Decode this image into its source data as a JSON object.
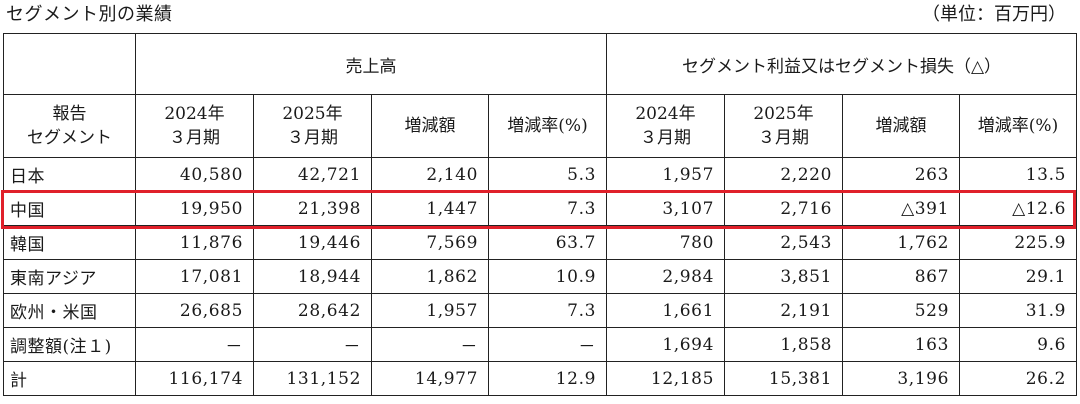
{
  "title": "セグメント別の業績",
  "unit": "（単位：百万円）",
  "header": {
    "sales_group": "売上高",
    "profit_group": "セグメント利益又はセグメント損失（△）",
    "segment_label_line1": "報告",
    "segment_label_line2": "セグメント",
    "columns": [
      {
        "line1": "2024年",
        "line2": "３月期"
      },
      {
        "line1": "2025年",
        "line2": "３月期"
      },
      {
        "line1": "増減額",
        "line2": ""
      },
      {
        "line1": "増減率(%)",
        "line2": ""
      },
      {
        "line1": "2024年",
        "line2": "３月期"
      },
      {
        "line1": "2025年",
        "line2": "３月期"
      },
      {
        "line1": "増減額",
        "line2": ""
      },
      {
        "line1": "増減率(%)",
        "line2": ""
      }
    ]
  },
  "rows": [
    {
      "segment": "日本",
      "values": [
        "40,580",
        "42,721",
        "2,140",
        "5.3",
        "1,957",
        "2,220",
        "263",
        "13.5"
      ]
    },
    {
      "segment": "中国",
      "values": [
        "19,950",
        "21,398",
        "1,447",
        "7.3",
        "3,107",
        "2,716",
        "△391",
        "△12.6"
      ],
      "highlighted": true
    },
    {
      "segment": "韓国",
      "values": [
        "11,876",
        "19,446",
        "7,569",
        "63.7",
        "780",
        "2,543",
        "1,762",
        "225.9"
      ]
    },
    {
      "segment": "東南アジア",
      "values": [
        "17,081",
        "18,944",
        "1,862",
        "10.9",
        "2,984",
        "3,851",
        "867",
        "29.1"
      ]
    },
    {
      "segment": "欧州・米国",
      "values": [
        "26,685",
        "28,642",
        "1,957",
        "7.3",
        "1,661",
        "2,191",
        "529",
        "31.9"
      ]
    },
    {
      "segment": "調整額(注１)",
      "values": [
        "－",
        "－",
        "－",
        "－",
        "1,694",
        "1,858",
        "163",
        "9.6"
      ]
    },
    {
      "segment": "計",
      "values": [
        "116,174",
        "131,152",
        "14,977",
        "12.9",
        "12,185",
        "15,381",
        "3,196",
        "26.2"
      ]
    }
  ],
  "colors": {
    "highlight_border": "#e0202a",
    "grid": "#222222"
  }
}
